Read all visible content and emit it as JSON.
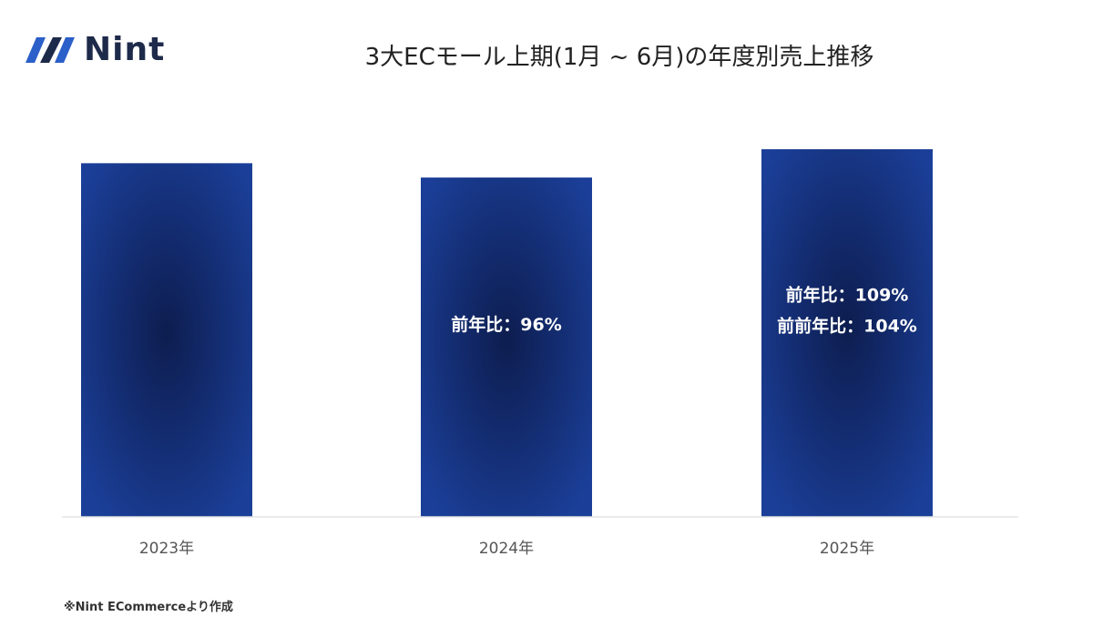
{
  "logo": {
    "text": "Nint"
  },
  "title": "3大ECモール上期(1月 ~ 6月)の年度別売上推移",
  "footnote": "※Nint ECommerceより作成",
  "colors": {
    "bar_center": "#0d1d4f",
    "bar_edge": "#1b3f99",
    "axis": "#e3e3e3",
    "tick_text": "#555555"
  },
  "chart_data": {
    "type": "bar",
    "title": "3大ECモール上期(1月 ~ 6月)の年度別売上推移",
    "categories": [
      "2023年",
      "2024年",
      "2025年"
    ],
    "values": [
      96.2,
      92.3,
      100
    ],
    "ylim": [
      0,
      100
    ],
    "grid": false,
    "annotations": [
      [],
      [
        "前年比：96%"
      ],
      [
        "前年比：109%",
        "前前年比：104%"
      ]
    ]
  }
}
